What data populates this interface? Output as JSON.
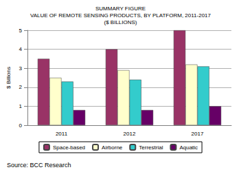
{
  "chart_data": {
    "type": "bar",
    "title": "SUMMARY FIGURE\nVALUE OF REMOTE SENSING PRODUCTS, BY PLATFORM, 2011-2017\n($ BILLIONS)",
    "y_label": "$ Billions",
    "source": "Source: BCC Research",
    "categories": [
      "2011",
      "2012",
      "2017"
    ],
    "series": [
      {
        "name": "Space-based",
        "color": "#993366",
        "values": [
          3.5,
          4.0,
          5.0
        ]
      },
      {
        "name": "Airborne",
        "color": "#ffffcc",
        "values": [
          2.5,
          2.9,
          3.2
        ]
      },
      {
        "name": "Terrestrial",
        "color": "#33cccc",
        "values": [
          2.3,
          2.4,
          3.1
        ]
      },
      {
        "name": "Aquatic",
        "color": "#660066",
        "values": [
          0.8,
          0.8,
          1.0
        ]
      }
    ],
    "ylim": [
      0,
      5
    ],
    "yticks": [
      0,
      1,
      2,
      3,
      4,
      5
    ],
    "grid": true,
    "legend": "bottom"
  }
}
